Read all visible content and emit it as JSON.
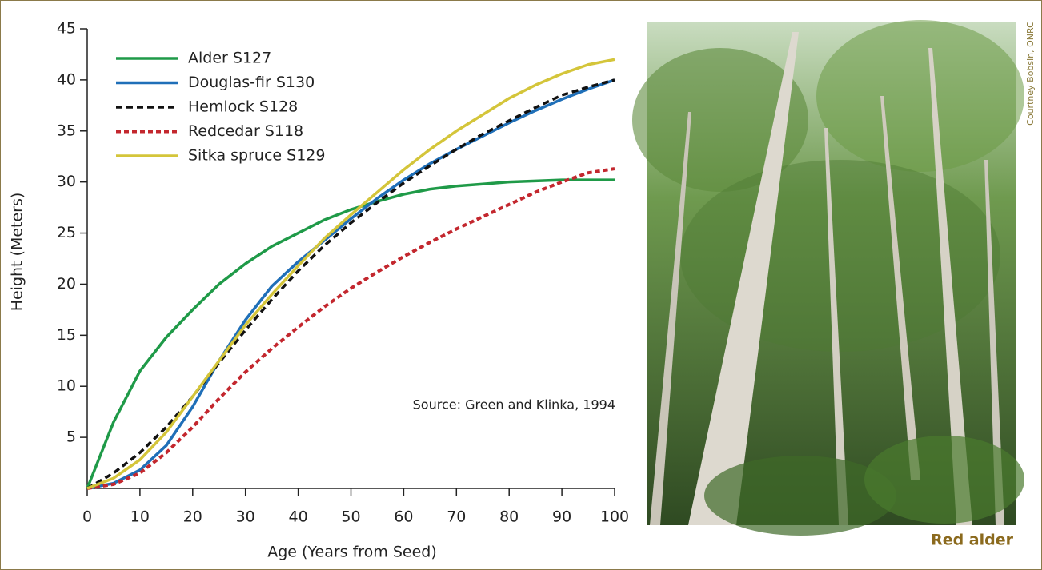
{
  "chart_data": {
    "type": "line",
    "xlabel": "Age (Years from Seed)",
    "ylabel": "Height (Meters)",
    "annotation": "Source: Green and Klinka, 1994",
    "x": [
      0,
      5,
      10,
      15,
      20,
      25,
      30,
      35,
      40,
      45,
      50,
      55,
      60,
      65,
      70,
      75,
      80,
      85,
      90,
      95,
      100
    ],
    "xlim": [
      0,
      100
    ],
    "xticks": [
      0,
      10,
      20,
      30,
      40,
      50,
      60,
      70,
      80,
      90,
      100
    ],
    "ylim": [
      0,
      45
    ],
    "yticks": [
      5,
      10,
      15,
      20,
      25,
      30,
      35,
      40,
      45
    ],
    "legend": "upper left",
    "series": [
      {
        "name": "Alder S127",
        "color": "#1f9a48",
        "style": "solid",
        "values": [
          0,
          6.5,
          11.5,
          14.8,
          17.5,
          20,
          22,
          23.7,
          25,
          26.3,
          27.3,
          28.1,
          28.8,
          29.3,
          29.6,
          29.8,
          30,
          30.1,
          30.2,
          30.2,
          30.2
        ]
      },
      {
        "name": "Douglas-fir S130",
        "color": "#1f6fb8",
        "style": "solid",
        "values": [
          0,
          0.5,
          1.8,
          4.2,
          8,
          12.5,
          16.5,
          19.8,
          22.2,
          24.3,
          26.4,
          28.4,
          30.2,
          31.8,
          33.2,
          34.5,
          35.8,
          37,
          38.1,
          39.1,
          40
        ]
      },
      {
        "name": "Hemlock S128",
        "color": "#111111",
        "style": "dashed",
        "values": [
          0,
          1.5,
          3.5,
          6,
          9,
          12.3,
          15.5,
          18.5,
          21.3,
          23.8,
          26,
          28,
          29.9,
          31.6,
          33.2,
          34.7,
          36,
          37.3,
          38.5,
          39.3,
          40
        ]
      },
      {
        "name": "Redcedar S118",
        "color": "#c3272e",
        "style": "dotted",
        "values": [
          0,
          0.4,
          1.5,
          3.5,
          6,
          8.8,
          11.4,
          13.7,
          15.8,
          17.8,
          19.6,
          21.2,
          22.7,
          24.1,
          25.4,
          26.6,
          27.8,
          29,
          30,
          30.9,
          31.3
        ]
      },
      {
        "name": "Sitka spruce S129",
        "color": "#d4c53a",
        "style": "solid",
        "values": [
          0,
          1,
          2.8,
          5.5,
          9,
          12.5,
          16,
          19,
          21.8,
          24.5,
          26.8,
          29,
          31.2,
          33.2,
          35,
          36.6,
          38.2,
          39.5,
          40.6,
          41.5,
          42
        ]
      }
    ]
  },
  "photo": {
    "caption": "Red alder",
    "credit": "Courtney Bobsin, ONRC"
  }
}
